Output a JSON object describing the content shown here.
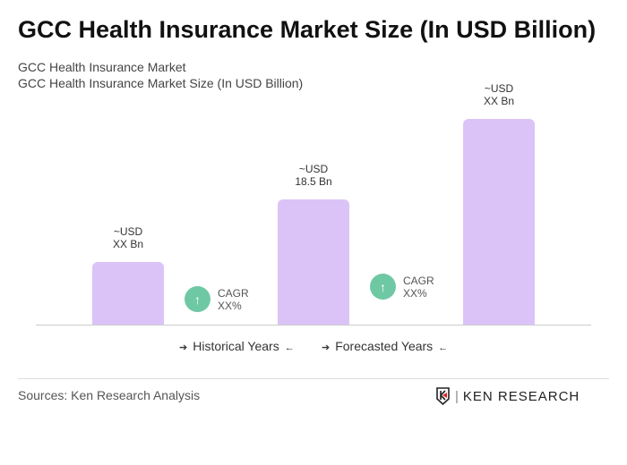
{
  "title": "GCC Health Insurance Market Size (In USD Billion)",
  "subtitle1": "GCC Health Insurance Market",
  "subtitle2": "GCC Health Insurance Market Size (In USD Billion)",
  "chart_data": {
    "type": "bar",
    "categories": [
      "",
      "",
      ""
    ],
    "values": [
      9.3,
      18.5,
      30.4
    ],
    "data_labels": [
      [
        "~USD",
        "XX Bn"
      ],
      [
        "~USD",
        "18.5 Bn"
      ],
      [
        "~USD",
        "XX Bn"
      ]
    ],
    "bar_color": "#dcc3f7",
    "cagr": [
      {
        "label": "CAGR",
        "value": "XX%"
      },
      {
        "label": "CAGR",
        "value": "XX%"
      }
    ],
    "cagr_color": "#6fc8a4",
    "periods": [
      "Historical Years",
      "Forecasted Years"
    ],
    "grid": false
  },
  "sources": "Sources: Ken Research Analysis",
  "logo": "KEN RESEARCH"
}
